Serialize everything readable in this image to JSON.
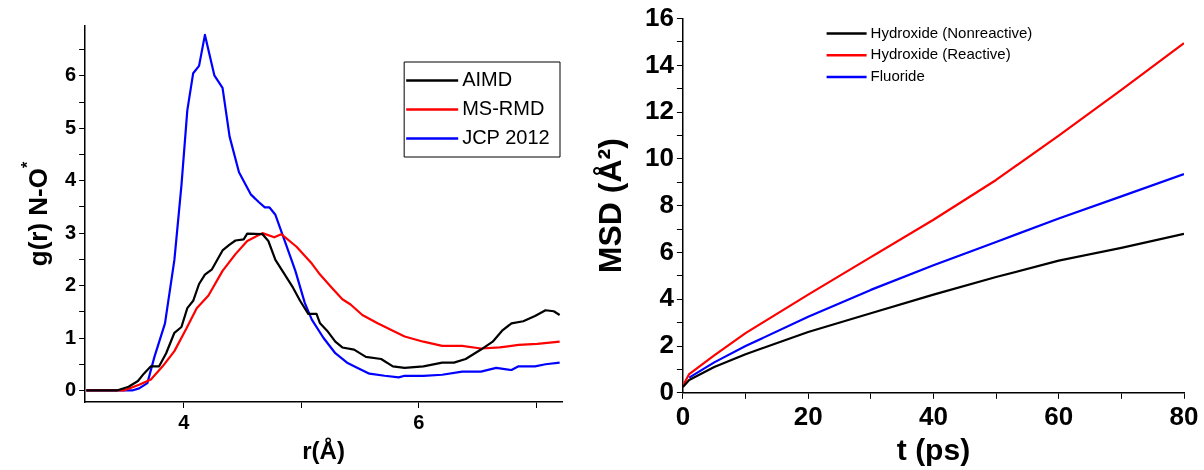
{
  "chart_data": [
    {
      "type": "line",
      "xlabel": "r(Å)",
      "ylabel": "g(r) N-O$^{*}$",
      "xlim": [
        3.16,
        7.22
      ],
      "ylim": [
        -0.22,
        6.95
      ],
      "xticks": [
        4,
        {
          "value": 5,
          "label": null
        },
        6,
        {
          "value": 7,
          "label": null
        }
      ],
      "yticks": [
        0,
        {
          "value": 0.5,
          "label": null
        },
        1,
        {
          "value": 1.5,
          "label": null
        },
        2,
        {
          "value": 2.5,
          "label": null
        },
        3,
        {
          "value": 3.5,
          "label": null
        },
        4,
        {
          "value": 4.5,
          "label": null
        },
        5,
        {
          "value": 5.5,
          "label": null
        },
        6,
        {
          "value": 6.5,
          "label": null
        }
      ],
      "legend": "top right",
      "marker": "none",
      "line_style": "solid",
      "series": [
        {
          "name": "AIMD",
          "color": "#000000",
          "x": [
            3.17,
            3.43,
            3.53,
            3.61,
            3.66,
            3.72,
            3.79,
            3.85,
            3.92,
            3.98,
            4.03,
            4.08,
            4.13,
            4.18,
            4.24,
            4.33,
            4.39,
            4.44,
            4.51,
            4.54,
            4.67,
            4.72,
            4.78,
            4.86,
            4.93,
            4.99,
            5.06,
            5.13,
            5.16,
            5.22,
            5.29,
            5.35,
            5.45,
            5.55,
            5.68,
            5.78,
            5.88,
            6.04,
            6.2,
            6.3,
            6.4,
            6.53,
            6.63,
            6.71,
            6.79,
            6.89,
            6.99,
            7.08,
            7.15,
            7.2
          ],
          "values": [
            0,
            0,
            0.07,
            0.18,
            0.32,
            0.46,
            0.46,
            0.71,
            1.1,
            1.21,
            1.57,
            1.71,
            2.03,
            2.21,
            2.31,
            2.67,
            2.78,
            2.86,
            2.88,
            2.99,
            2.98,
            2.85,
            2.49,
            2.21,
            1.96,
            1.71,
            1.46,
            1.46,
            1.28,
            1.14,
            0.93,
            0.82,
            0.78,
            0.64,
            0.6,
            0.46,
            0.43,
            0.46,
            0.53,
            0.53,
            0.6,
            0.78,
            0.93,
            1.14,
            1.28,
            1.32,
            1.42,
            1.53,
            1.51,
            1.44
          ]
        },
        {
          "name": "MS-RMD",
          "color": "#ff0000",
          "x": [
            3.17,
            3.49,
            3.62,
            3.72,
            3.82,
            3.92,
            4.02,
            4.11,
            4.21,
            4.33,
            4.44,
            4.54,
            4.67,
            4.77,
            4.83,
            4.96,
            5.09,
            5.16,
            5.26,
            5.35,
            5.42,
            5.52,
            5.65,
            5.78,
            5.88,
            6.04,
            6.2,
            6.37,
            6.53,
            6.69,
            6.85,
            7.01,
            7.2
          ],
          "values": [
            0,
            0,
            0.11,
            0.21,
            0.46,
            0.75,
            1.17,
            1.57,
            1.81,
            2.28,
            2.6,
            2.85,
            3.0,
            2.92,
            2.98,
            2.74,
            2.42,
            2.21,
            1.96,
            1.74,
            1.64,
            1.44,
            1.28,
            1.14,
            1.03,
            0.93,
            0.85,
            0.85,
            0.8,
            0.82,
            0.87,
            0.89,
            0.93
          ]
        },
        {
          "name": "JCP 2012",
          "color": "#0000ff",
          "x": [
            3.17,
            3.56,
            3.62,
            3.69,
            3.75,
            3.84,
            3.92,
            3.98,
            4.03,
            4.08,
            4.13,
            4.18,
            4.26,
            4.33,
            4.39,
            4.47,
            4.57,
            4.64,
            4.69,
            4.73,
            4.78,
            4.86,
            4.95,
            5.03,
            5.09,
            5.19,
            5.29,
            5.39,
            5.48,
            5.58,
            5.71,
            5.83,
            5.88,
            6.04,
            6.2,
            6.37,
            6.53,
            6.66,
            6.79,
            6.85,
            6.99,
            7.08,
            7.2
          ],
          "values": [
            0,
            0,
            0.04,
            0.14,
            0.64,
            1.28,
            2.49,
            3.91,
            5.34,
            6.05,
            6.19,
            6.78,
            6.01,
            5.77,
            4.84,
            4.16,
            3.74,
            3.59,
            3.49,
            3.49,
            3.35,
            2.85,
            2.28,
            1.67,
            1.35,
            1.0,
            0.71,
            0.53,
            0.43,
            0.32,
            0.28,
            0.25,
            0.28,
            0.28,
            0.3,
            0.36,
            0.36,
            0.43,
            0.39,
            0.46,
            0.46,
            0.5,
            0.53
          ]
        }
      ]
    },
    {
      "type": "line",
      "xlabel": "t (ps)",
      "ylabel": "MSD (Å²)",
      "xlim": [
        0,
        80
      ],
      "ylim": [
        0,
        16
      ],
      "xticks": [
        0,
        {
          "value": 10,
          "label": null
        },
        20,
        {
          "value": 30,
          "label": null
        },
        40,
        {
          "value": 50,
          "label": null
        },
        60,
        {
          "value": 70,
          "label": null
        },
        80
      ],
      "yticks": [
        0,
        {
          "value": 1,
          "label": null
        },
        2,
        {
          "value": 3,
          "label": null
        },
        4,
        {
          "value": 5,
          "label": null
        },
        6,
        {
          "value": 7,
          "label": null
        },
        8,
        {
          "value": 9,
          "label": null
        },
        10,
        {
          "value": 11,
          "label": null
        },
        12,
        {
          "value": 13,
          "label": null
        },
        14,
        {
          "value": 15,
          "label": null
        },
        16
      ],
      "legend": "top",
      "marker": "none",
      "line_style": "solid",
      "series": [
        {
          "name": "Hydroxide (Nonreactive)",
          "color": "#000000",
          "x": [
            0,
            1,
            5,
            10,
            20,
            30,
            40,
            50,
            60,
            70,
            80
          ],
          "values": [
            0.25,
            0.55,
            1.1,
            1.65,
            2.6,
            3.4,
            4.2,
            4.95,
            5.65,
            6.2,
            6.8
          ]
        },
        {
          "name": "Hydroxide (Reactive)",
          "color": "#ff0000",
          "x": [
            0,
            1,
            5,
            10,
            20,
            30,
            40,
            50,
            60,
            70,
            80
          ],
          "values": [
            0.3,
            0.8,
            1.6,
            2.55,
            4.2,
            5.8,
            7.4,
            9.1,
            11.0,
            12.95,
            14.95
          ]
        },
        {
          "name": "Fluoride",
          "color": "#0000ff",
          "x": [
            1,
            5,
            10,
            20,
            30,
            40,
            50,
            60,
            70,
            80
          ],
          "values": [
            0.65,
            1.3,
            2.0,
            3.25,
            4.4,
            5.45,
            6.45,
            7.45,
            8.4,
            9.35
          ]
        }
      ]
    }
  ]
}
